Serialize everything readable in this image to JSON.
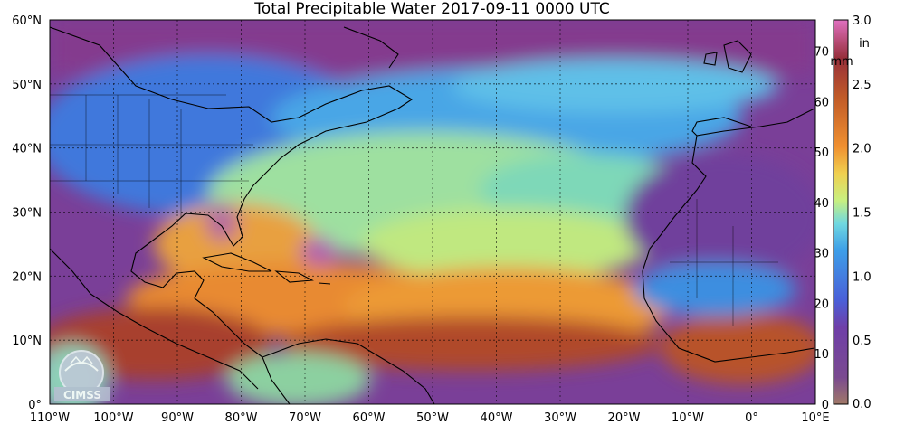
{
  "title": "Total Precipitable Water  2017-09-11 0000 UTC",
  "x_ticks": [
    "110°W",
    "100°W",
    "90°W",
    "80°W",
    "70°W",
    "60°W",
    "50°W",
    "40°W",
    "30°W",
    "20°W",
    "10°W",
    "0°",
    "10°E"
  ],
  "y_ticks": [
    "0°",
    "10°N",
    "20°N",
    "30°N",
    "40°N",
    "50°N",
    "60°N"
  ],
  "colorbar": {
    "mm_unit": "mm",
    "in_unit": "in",
    "mm_ticks": [
      "0",
      "10",
      "20",
      "30",
      "40",
      "50",
      "60",
      "70"
    ],
    "in_ticks": [
      "0.0",
      "0.5",
      "1.0",
      "1.5",
      "2.0",
      "2.5",
      "3.0"
    ]
  },
  "logo": "CIMSS",
  "colors": {
    "dry": "#7b3a8c",
    "moderate": "#3d86e0",
    "moist": "#8fe0a0",
    "wet": "#e89030",
    "very_wet": "#9b3a2a"
  }
}
